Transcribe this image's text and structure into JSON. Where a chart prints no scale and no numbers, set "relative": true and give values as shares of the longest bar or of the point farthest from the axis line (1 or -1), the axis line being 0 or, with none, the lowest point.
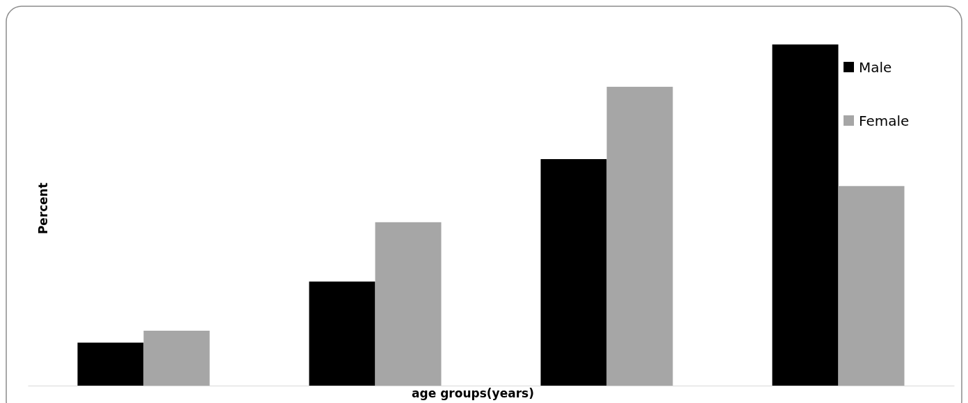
{
  "chart_data": {
    "type": "bar",
    "relative": true,
    "xlabel": "age groups(years)",
    "ylabel": "Percent",
    "categories": [
      null,
      null,
      null,
      null
    ],
    "legend": "top right",
    "series": [
      {
        "name": "Male",
        "color": "#000000",
        "values": [
          0.126,
          0.305,
          0.664,
          1
        ]
      },
      {
        "name": "Female",
        "color": "#a6a6a6",
        "values": [
          0.161,
          0.479,
          0.876,
          0.585
        ]
      }
    ]
  }
}
